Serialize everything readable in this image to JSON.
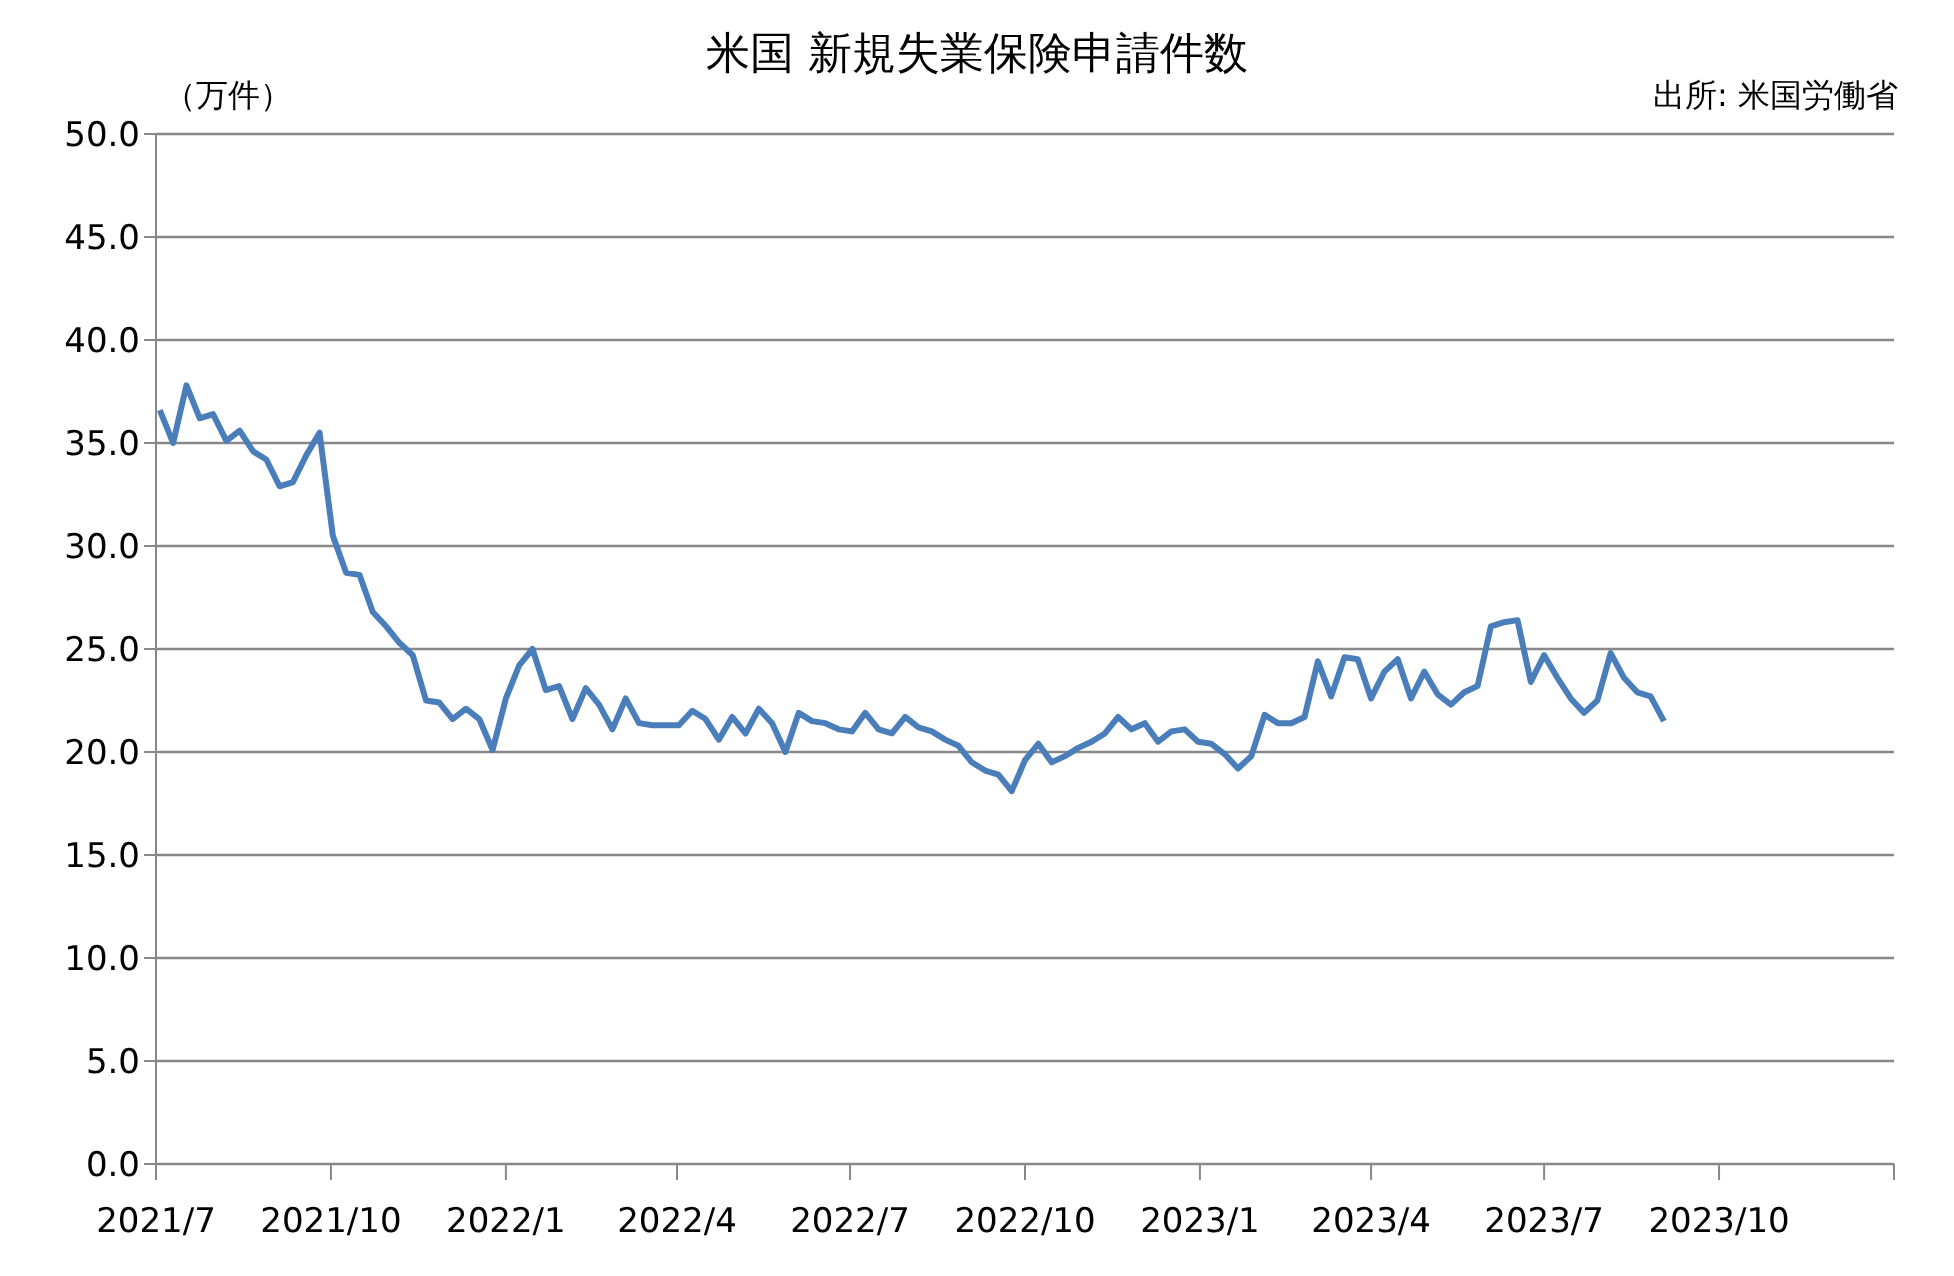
{
  "chart_data": {
    "type": "line",
    "title": "米国  新規失業保険申請件数",
    "ylabel": "（万件）",
    "annotations": [
      "出所: 米国労働省"
    ],
    "x": [
      "2021-07-03",
      "2021-07-10",
      "2021-07-17",
      "2021-07-24",
      "2021-07-31",
      "2021-08-07",
      "2021-08-14",
      "2021-08-21",
      "2021-08-28",
      "2021-09-04",
      "2021-09-11",
      "2021-09-18",
      "2021-09-25",
      "2021-10-02",
      "2021-10-09",
      "2021-10-16",
      "2021-10-23",
      "2021-10-30",
      "2021-11-06",
      "2021-11-13",
      "2021-11-20",
      "2021-11-27",
      "2021-12-04",
      "2021-12-11",
      "2021-12-18",
      "2021-12-25",
      "2022-01-01",
      "2022-01-08",
      "2022-01-15",
      "2022-01-22",
      "2022-01-29",
      "2022-02-05",
      "2022-02-12",
      "2022-02-19",
      "2022-02-26",
      "2022-03-05",
      "2022-03-12",
      "2022-03-19",
      "2022-03-26",
      "2022-04-02",
      "2022-04-09",
      "2022-04-16",
      "2022-04-23",
      "2022-04-30",
      "2022-05-07",
      "2022-05-14",
      "2022-05-21",
      "2022-05-28",
      "2022-06-04",
      "2022-06-11",
      "2022-06-18",
      "2022-06-25",
      "2022-07-02",
      "2022-07-09",
      "2022-07-16",
      "2022-07-23",
      "2022-07-30",
      "2022-08-06",
      "2022-08-13",
      "2022-08-20",
      "2022-08-27",
      "2022-09-03",
      "2022-09-10",
      "2022-09-17",
      "2022-09-24",
      "2022-10-01",
      "2022-10-08",
      "2022-10-15",
      "2022-10-22",
      "2022-10-29",
      "2022-11-05",
      "2022-11-12",
      "2022-11-19",
      "2022-11-26",
      "2022-12-03",
      "2022-12-10",
      "2022-12-17",
      "2022-12-24",
      "2022-12-31",
      "2023-01-07",
      "2023-01-14",
      "2023-01-21",
      "2023-01-28",
      "2023-02-04",
      "2023-02-11",
      "2023-02-18",
      "2023-02-25",
      "2023-03-04",
      "2023-03-11",
      "2023-03-18",
      "2023-03-25",
      "2023-04-01",
      "2023-04-08",
      "2023-04-15",
      "2023-04-22",
      "2023-04-29",
      "2023-05-06",
      "2023-05-13",
      "2023-05-20",
      "2023-05-27",
      "2023-06-03",
      "2023-06-10",
      "2023-06-17",
      "2023-06-24",
      "2023-07-01",
      "2023-07-08",
      "2023-07-15",
      "2023-07-22",
      "2023-07-29",
      "2023-08-05",
      "2023-08-12",
      "2023-08-19",
      "2023-08-26",
      "2023-09-02"
    ],
    "series": [
      {
        "color": "#4a7ebb",
        "values": [
          36.6,
          35.0,
          37.8,
          36.2,
          36.4,
          35.1,
          35.6,
          34.6,
          34.2,
          32.9,
          33.1,
          34.4,
          35.5,
          30.5,
          28.7,
          28.6,
          26.8,
          26.1,
          25.3,
          24.7,
          22.5,
          22.4,
          21.6,
          22.1,
          21.6,
          20.1,
          22.6,
          24.2,
          25.0,
          23.0,
          23.2,
          21.6,
          23.1,
          22.3,
          21.1,
          22.6,
          21.4,
          21.3,
          21.3,
          21.3,
          22.0,
          21.6,
          20.6,
          21.7,
          20.9,
          22.1,
          21.4,
          20.0,
          21.9,
          21.5,
          21.4,
          21.1,
          21.0,
          21.9,
          21.1,
          20.9,
          21.7,
          21.2,
          21.0,
          20.6,
          20.3,
          19.5,
          19.1,
          18.9,
          18.1,
          19.6,
          20.4,
          19.5,
          19.8,
          20.2,
          20.5,
          20.9,
          21.7,
          21.1,
          21.4,
          20.5,
          21.0,
          21.1,
          20.5,
          20.4,
          19.9,
          19.2,
          19.8,
          21.8,
          21.4,
          21.4,
          21.7,
          24.4,
          22.7,
          24.6,
          24.5,
          22.6,
          23.9,
          24.5,
          22.6,
          23.9,
          22.8,
          22.3,
          22.9,
          23.2,
          26.1,
          26.3,
          26.4,
          23.4,
          24.7,
          23.6,
          22.6,
          21.9,
          22.5,
          24.8,
          23.6,
          22.9,
          22.7,
          21.5
        ]
      }
    ],
    "xlim": [
      "2021-07-01",
      "2024-01-01"
    ],
    "xticks": [
      {
        "value": "2021-07-01",
        "label": "2021/7"
      },
      {
        "value": "2021-10-01",
        "label": "2021/10"
      },
      {
        "value": "2022-01-01",
        "label": "2022/1"
      },
      {
        "value": "2022-04-01",
        "label": "2022/4"
      },
      {
        "value": "2022-07-01",
        "label": "2022/7"
      },
      {
        "value": "2022-10-01",
        "label": "2022/10"
      },
      {
        "value": "2023-01-01",
        "label": "2023/1"
      },
      {
        "value": "2023-04-01",
        "label": "2023/4"
      },
      {
        "value": "2023-07-01",
        "label": "2023/7"
      },
      {
        "value": "2023-10-01",
        "label": "2023/10"
      },
      {
        "value": "2024-01-01",
        "label": null
      }
    ],
    "ylim": [
      0,
      50
    ],
    "yticks": [
      {
        "value": 0,
        "label": "0.0"
      },
      {
        "value": 5,
        "label": "5.0"
      },
      {
        "value": 10,
        "label": "10.0"
      },
      {
        "value": 15,
        "label": "15.0"
      },
      {
        "value": 20,
        "label": "20.0"
      },
      {
        "value": 25,
        "label": "25.0"
      },
      {
        "value": 30,
        "label": "30.0"
      },
      {
        "value": 35,
        "label": "35.0"
      },
      {
        "value": 40,
        "label": "40.0"
      },
      {
        "value": 45,
        "label": "45.0"
      },
      {
        "value": 50,
        "label": "50.0"
      }
    ],
    "grid": "y",
    "marker": "none",
    "line_style": "solid",
    "legend": false
  }
}
